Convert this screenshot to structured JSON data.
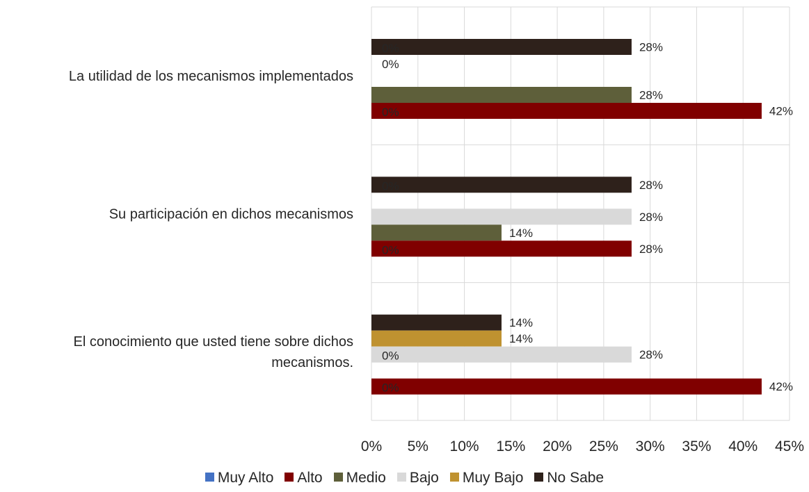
{
  "chart_data": {
    "type": "bar",
    "orientation": "horizontal",
    "categories": [
      "La utilidad de los mecanismos implementados",
      "Su participación en dichos mecanismos",
      "El conocimiento que usted tiene sobre dichos mecanismos."
    ],
    "series": [
      {
        "name": "Muy Alto",
        "color": "#4472C4",
        "values": [
          0,
          0,
          0
        ],
        "labels": [
          "0%",
          "0%",
          "0%"
        ]
      },
      {
        "name": "Alto",
        "color": "#800000",
        "values": [
          42,
          28,
          42
        ],
        "labels": [
          "42%",
          "28%",
          "42%"
        ]
      },
      {
        "name": "Medio",
        "color": "#5E5F3A",
        "values": [
          28,
          14,
          0
        ],
        "labels": [
          "28%",
          "14%",
          "0%"
        ]
      },
      {
        "name": "Bajo",
        "color": "#D9D9D9",
        "values": [
          0,
          28,
          28
        ],
        "labels": [
          "0%",
          "28%",
          "28%"
        ]
      },
      {
        "name": "Muy Bajo",
        "color": "#BF9230",
        "values": [
          0,
          0,
          14
        ],
        "labels": [
          "0%",
          "0%",
          "14%"
        ]
      },
      {
        "name": "No Sabe",
        "color": "#2E211B",
        "values": [
          28,
          28,
          14
        ],
        "labels": [
          "28%",
          "28%",
          "14%"
        ]
      }
    ],
    "xlim": [
      0,
      45
    ],
    "xticks": [
      "0%",
      "5%",
      "10%",
      "15%",
      "20%",
      "25%",
      "30%",
      "35%",
      "40%",
      "45%"
    ],
    "grid": true,
    "legend_position": "bottom",
    "xlabel": "",
    "ylabel": "",
    "title": ""
  }
}
